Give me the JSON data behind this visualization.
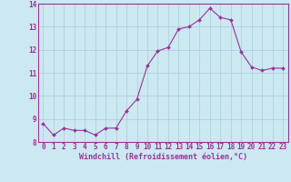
{
  "x": [
    0,
    1,
    2,
    3,
    4,
    5,
    6,
    7,
    8,
    9,
    10,
    11,
    12,
    13,
    14,
    15,
    16,
    17,
    18,
    19,
    20,
    21,
    22,
    23
  ],
  "y": [
    8.8,
    8.3,
    8.6,
    8.5,
    8.5,
    8.3,
    8.6,
    8.6,
    9.35,
    9.85,
    11.3,
    11.95,
    12.1,
    12.9,
    13.0,
    13.3,
    13.8,
    13.4,
    13.3,
    11.9,
    11.25,
    11.1,
    11.2,
    11.2
  ],
  "line_color": "#993399",
  "marker_color": "#993399",
  "bg_color": "#cce8f0",
  "grid_color": "#aaccdd",
  "xlabel": "Windchill (Refroidissement éolien,°C)",
  "xlabel_color": "#993399",
  "tick_color": "#993399",
  "ylim": [
    8,
    14
  ],
  "xlim_min": -0.5,
  "xlim_max": 23.5,
  "yticks": [
    8,
    9,
    10,
    11,
    12,
    13,
    14
  ],
  "xticks": [
    0,
    1,
    2,
    3,
    4,
    5,
    6,
    7,
    8,
    9,
    10,
    11,
    12,
    13,
    14,
    15,
    16,
    17,
    18,
    19,
    20,
    21,
    22,
    23
  ],
  "spine_color": "#993399",
  "tick_fontsize": 5.5,
  "ylabel_fontsize": 5.5,
  "xlabel_fontsize": 6.0
}
